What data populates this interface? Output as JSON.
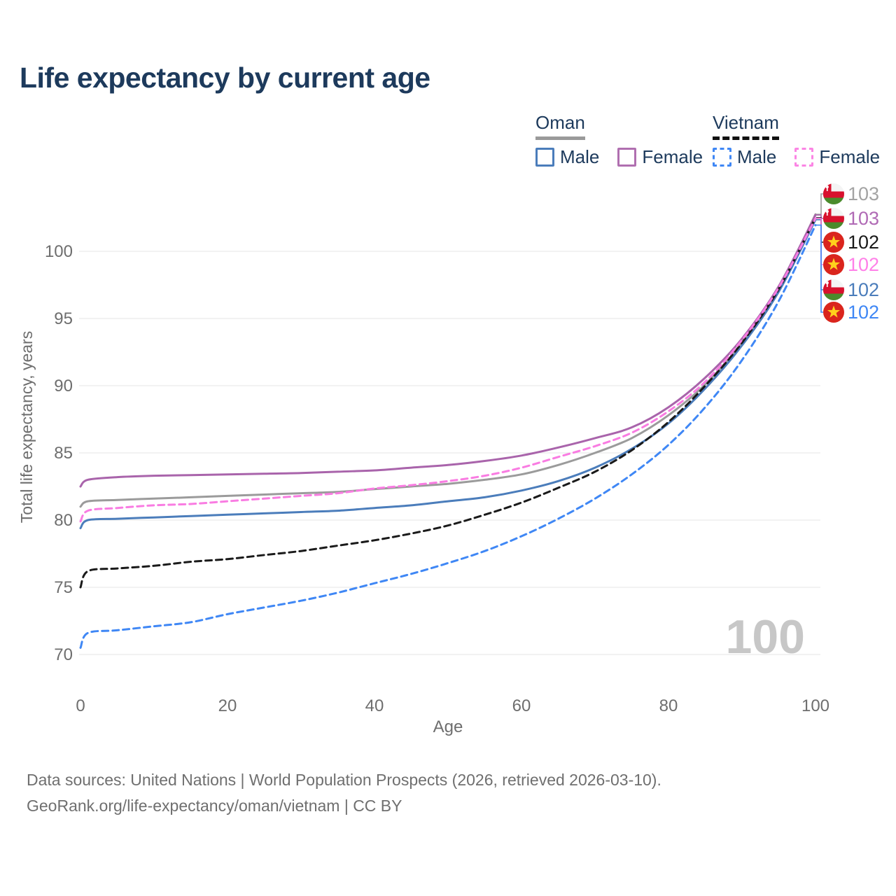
{
  "title": "Life expectancy by current age",
  "legend": {
    "groups": [
      {
        "label": "Oman",
        "line_color": "#9a9a9a",
        "line_style": "solid",
        "items": [
          {
            "label": "Male",
            "color": "#4b7dbb",
            "dashed": false
          },
          {
            "label": "Female",
            "color": "#b06fb0",
            "dashed": false
          }
        ]
      },
      {
        "label": "Vietnam",
        "line_color": "#111111",
        "line_style": "dashed",
        "items": [
          {
            "label": "Male",
            "color": "#3f87f5",
            "dashed": true
          },
          {
            "label": "Female",
            "color": "#fb85e4",
            "dashed": true
          }
        ]
      }
    ]
  },
  "chart_data": {
    "type": "line",
    "title": "Life expectancy by current age",
    "xlabel": "Age",
    "ylabel": "Total life expectancy, years",
    "xlim": [
      0,
      100
    ],
    "ylim": [
      70,
      103
    ],
    "xticks": [
      0,
      20,
      40,
      60,
      80,
      100
    ],
    "yticks": [
      70,
      75,
      80,
      85,
      90,
      95,
      100
    ],
    "grid": "horizontal",
    "watermark": "100",
    "x": [
      0,
      1,
      5,
      10,
      15,
      20,
      25,
      30,
      35,
      40,
      45,
      50,
      55,
      60,
      65,
      70,
      75,
      80,
      85,
      90,
      95,
      100
    ],
    "series": [
      {
        "key": "oman-total",
        "name": "Oman — Both sexes",
        "country": "Oman",
        "flag": "oman",
        "color": "#9b9b9b",
        "dashed": false,
        "end_label": "103",
        "label_color": "#a3a3a3",
        "label_row": 0,
        "values": [
          81.0,
          81.4,
          81.5,
          81.6,
          81.7,
          81.8,
          81.9,
          82.0,
          82.1,
          82.3,
          82.5,
          82.7,
          83.0,
          83.4,
          84.1,
          85.0,
          86.1,
          87.8,
          90.1,
          93.2,
          97.2,
          102.75
        ]
      },
      {
        "key": "oman-male",
        "name": "Oman — Male",
        "country": "Oman",
        "flag": "oman",
        "color": "#4b7dbb",
        "dashed": false,
        "end_label": "102",
        "label_color": "#4b7dbb",
        "label_row": 4,
        "values": [
          79.4,
          80.0,
          80.1,
          80.2,
          80.3,
          80.4,
          80.5,
          80.6,
          80.7,
          80.9,
          81.1,
          81.4,
          81.7,
          82.2,
          82.9,
          83.9,
          85.3,
          87.2,
          89.8,
          93.0,
          97.0,
          102.35
        ]
      },
      {
        "key": "oman-female",
        "name": "Oman — Female",
        "country": "Oman",
        "flag": "oman",
        "color": "#a964ab",
        "dashed": false,
        "end_label": "103",
        "label_color": "#b06ab5",
        "label_row": 1,
        "values": [
          82.5,
          83.0,
          83.2,
          83.3,
          83.35,
          83.4,
          83.45,
          83.5,
          83.6,
          83.7,
          83.9,
          84.1,
          84.4,
          84.8,
          85.4,
          86.1,
          86.9,
          88.4,
          90.6,
          93.5,
          97.4,
          102.7
        ]
      },
      {
        "key": "vietnam-total",
        "name": "Vietnam — Both sexes",
        "country": "Vietnam",
        "flag": "vietnam",
        "color": "#1a1a1a",
        "dashed": true,
        "end_label": "102",
        "label_color": "#1a1a1a",
        "label_row": 2,
        "values": [
          75.0,
          76.2,
          76.4,
          76.6,
          76.9,
          77.1,
          77.4,
          77.7,
          78.1,
          78.5,
          79.0,
          79.6,
          80.4,
          81.3,
          82.4,
          83.6,
          85.2,
          87.3,
          90.0,
          93.2,
          97.2,
          102.5
        ]
      },
      {
        "key": "vietnam-female",
        "name": "Vietnam — Female",
        "country": "Vietnam",
        "flag": "vietnam",
        "color": "#f97ce2",
        "dashed": true,
        "end_label": "102",
        "label_color": "#ff80e8",
        "label_row": 3,
        "values": [
          79.9,
          80.7,
          80.9,
          81.1,
          81.2,
          81.4,
          81.6,
          81.8,
          82.0,
          82.35,
          82.6,
          82.9,
          83.3,
          83.9,
          84.7,
          85.5,
          86.5,
          88.1,
          90.3,
          93.4,
          97.3,
          102.45
        ]
      },
      {
        "key": "vietnam-male",
        "name": "Vietnam — Male",
        "country": "Vietnam",
        "flag": "vietnam",
        "color": "#3f87f5",
        "dashed": true,
        "end_label": "102",
        "label_color": "#3f87f5",
        "label_row": 5,
        "values": [
          70.5,
          71.6,
          71.8,
          72.1,
          72.4,
          73.0,
          73.5,
          74.0,
          74.6,
          75.3,
          76.0,
          76.8,
          77.7,
          78.8,
          80.1,
          81.6,
          83.4,
          85.6,
          88.4,
          91.9,
          96.3,
          101.95
        ]
      }
    ],
    "legend_position": "top-right"
  },
  "footer": {
    "line1": "Data sources: United Nations | World Population Prospects (2026, retrieved 2026-03-10).",
    "line2": "GeoRank.org/life-expectancy/oman/vietnam | CC BY"
  },
  "colors": {
    "title": "#1d3a5c",
    "axis_text": "#6e6e6e",
    "gridline": "#e9e9e9",
    "watermark": "#c7c7c7",
    "oman_flag_red": "#d8112d",
    "oman_flag_green": "#4a8b2c",
    "vietnam_flag_red": "#da251d",
    "vietnam_star_yellow": "#ffd21c"
  }
}
